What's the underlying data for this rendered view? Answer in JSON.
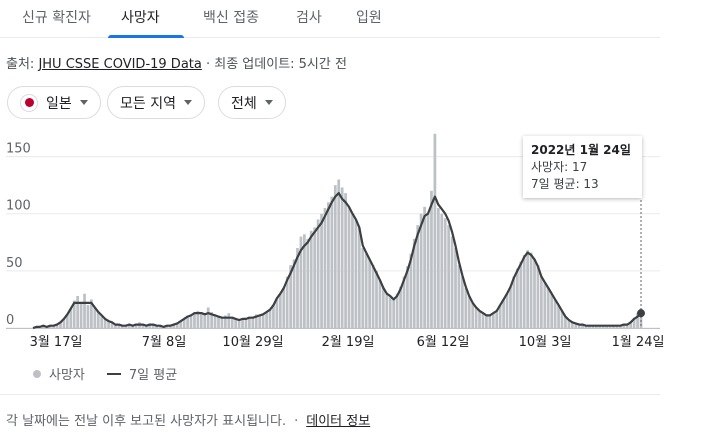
{
  "tabs": [
    {
      "label": "신규 확진자",
      "active": false
    },
    {
      "label": "사망자",
      "active": true
    },
    {
      "label": "백신 접종",
      "active": false
    },
    {
      "label": "검사",
      "active": false
    },
    {
      "label": "입원",
      "active": false
    }
  ],
  "source": {
    "prefix": "출처: ",
    "link_text": "JHU CSSE COVID-19 Data",
    "suffix": " · 최종 업데이트: 5시간 전"
  },
  "filters": {
    "country": "일본",
    "region": "모든 지역",
    "period": "전체"
  },
  "tooltip": {
    "date": "2022년 1월 24일",
    "deaths": "사망자: 17",
    "average": "7일 평균: 13"
  },
  "legend": {
    "daily": "사망자",
    "average": "7일 평균"
  },
  "footer": {
    "note": "각 날짜에는 전날 이후 보고된 사망자가 표시됩니다.",
    "separator": "·",
    "link_text": "데이터 정보"
  },
  "colors": {
    "bars": "#bdc1c6",
    "avg_line": "#3c4043",
    "accent": "#1a73e8",
    "flag_red": "#bc002d"
  },
  "chart_data": {
    "type": "bar",
    "y_ticks": [
      "0",
      "50",
      "100",
      "150"
    ],
    "ylim": [
      0,
      175
    ],
    "x_ticks": [
      "3월 17일",
      "7월 8일",
      "10월 29일",
      "2월 19일",
      "6월 12일",
      "10월 3일",
      "1월 24일"
    ],
    "series": [
      {
        "name": "사망자",
        "values": [
          0,
          1,
          1,
          2,
          1,
          2,
          2,
          3,
          5,
          8,
          12,
          17,
          24,
          28,
          22,
          30,
          20,
          25,
          18,
          14,
          11,
          8,
          6,
          5,
          3,
          3,
          2,
          2,
          3,
          2,
          4,
          5,
          3,
          2,
          4,
          3,
          2,
          2,
          1,
          2,
          2,
          3,
          4,
          6,
          8,
          10,
          11,
          13,
          15,
          14,
          12,
          18,
          14,
          12,
          10,
          9,
          11,
          13,
          10,
          8,
          7,
          8,
          9,
          10,
          9,
          12,
          11,
          12,
          14,
          16,
          20,
          26,
          30,
          35,
          45,
          55,
          60,
          70,
          80,
          82,
          78,
          85,
          88,
          95,
          100,
          105,
          110,
          115,
          125,
          130,
          123,
          118,
          106,
          100,
          95,
          88,
          70,
          65,
          60,
          55,
          50,
          42,
          35,
          30,
          28,
          25,
          30,
          36,
          45,
          54,
          65,
          78,
          90,
          100,
          106,
          100,
          120,
          170,
          105,
          100,
          96,
          90,
          80,
          70,
          55,
          45,
          35,
          28,
          22,
          18,
          15,
          13,
          11,
          11,
          13,
          15,
          20,
          25,
          30,
          36,
          45,
          52,
          58,
          64,
          68,
          66,
          60,
          55,
          45,
          40,
          35,
          30,
          25,
          20,
          15,
          10,
          7,
          5,
          4,
          3,
          3,
          2,
          2,
          2,
          2,
          2,
          2,
          2,
          2,
          2,
          2,
          2,
          3,
          3,
          5,
          9,
          13,
          17
        ]
      },
      {
        "name": "7일 평균",
        "values": [
          0,
          1,
          1,
          2,
          1,
          2,
          2,
          3,
          5,
          8,
          12,
          17,
          22,
          22,
          22,
          22,
          22,
          22,
          18,
          14,
          11,
          8,
          6,
          5,
          3,
          3,
          2,
          2,
          3,
          2,
          3,
          3,
          3,
          2,
          3,
          3,
          2,
          2,
          1,
          2,
          2,
          3,
          4,
          6,
          8,
          10,
          11,
          13,
          13,
          13,
          12,
          13,
          12,
          11,
          10,
          9,
          9,
          9,
          9,
          8,
          7,
          8,
          8,
          9,
          9,
          10,
          11,
          12,
          14,
          16,
          20,
          26,
          30,
          35,
          42,
          48,
          55,
          62,
          68,
          72,
          75,
          80,
          84,
          88,
          92,
          98,
          104,
          110,
          115,
          118,
          113,
          110,
          106,
          100,
          95,
          88,
          72,
          66,
          60,
          54,
          48,
          42,
          35,
          30,
          28,
          25,
          28,
          34,
          42,
          50,
          60,
          72,
          82,
          90,
          98,
          100,
          108,
          115,
          108,
          104,
          100,
          94,
          84,
          72,
          58,
          46,
          36,
          28,
          22,
          18,
          15,
          13,
          11,
          11,
          13,
          15,
          20,
          25,
          30,
          36,
          44,
          50,
          56,
          62,
          66,
          64,
          60,
          54,
          45,
          40,
          35,
          30,
          25,
          20,
          15,
          10,
          7,
          5,
          4,
          3,
          3,
          2,
          2,
          2,
          2,
          2,
          2,
          2,
          2,
          2,
          2,
          2,
          3,
          3,
          5,
          8,
          10,
          13
        ]
      }
    ],
    "grid": true
  }
}
